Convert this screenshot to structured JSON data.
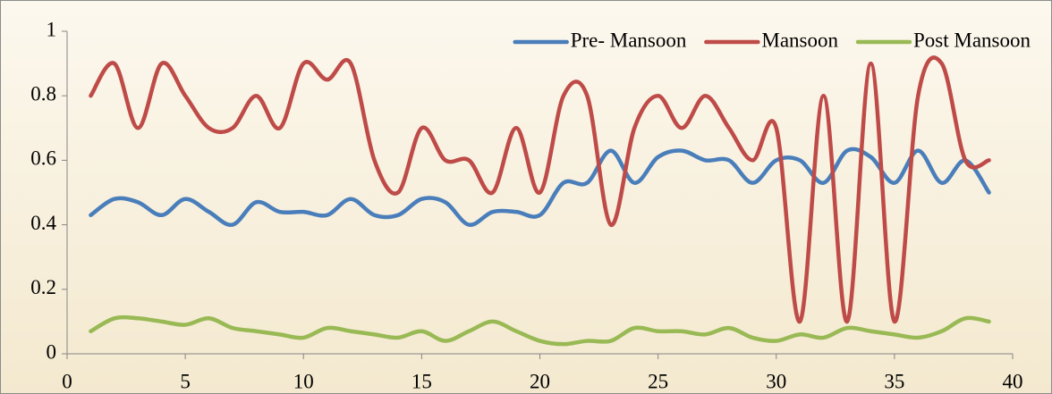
{
  "chart_data": {
    "type": "line",
    "smooth": true,
    "legend": "top-right",
    "grid": false,
    "x": [
      1,
      2,
      3,
      4,
      5,
      6,
      7,
      8,
      9,
      10,
      11,
      12,
      13,
      14,
      15,
      16,
      17,
      18,
      19,
      20,
      21,
      22,
      23,
      24,
      25,
      26,
      27,
      28,
      29,
      30,
      31,
      32,
      33,
      34,
      35,
      36,
      37,
      38,
      39
    ],
    "series": [
      {
        "name": "Pre- Mansoon",
        "color": "#4a7ebb",
        "values": [
          0.43,
          0.48,
          0.47,
          0.43,
          0.48,
          0.44,
          0.4,
          0.47,
          0.44,
          0.44,
          0.43,
          0.48,
          0.43,
          0.43,
          0.48,
          0.47,
          0.4,
          0.44,
          0.44,
          0.43,
          0.53,
          0.53,
          0.63,
          0.53,
          0.61,
          0.63,
          0.6,
          0.6,
          0.53,
          0.6,
          0.6,
          0.53,
          0.63,
          0.61,
          0.53,
          0.63,
          0.53,
          0.6,
          0.5
        ]
      },
      {
        "name": "Mansoon",
        "color": "#be4b48",
        "values": [
          0.8,
          0.9,
          0.7,
          0.9,
          0.8,
          0.7,
          0.7,
          0.8,
          0.7,
          0.9,
          0.85,
          0.9,
          0.6,
          0.5,
          0.7,
          0.6,
          0.6,
          0.5,
          0.7,
          0.5,
          0.8,
          0.8,
          0.4,
          0.7,
          0.8,
          0.7,
          0.8,
          0.7,
          0.6,
          0.7,
          0.1,
          0.8,
          0.1,
          0.9,
          0.1,
          0.8,
          0.9,
          0.6,
          0.6
        ]
      },
      {
        "name": "Post Mansoon",
        "color": "#98b954",
        "values": [
          0.07,
          0.11,
          0.11,
          0.1,
          0.09,
          0.11,
          0.08,
          0.07,
          0.06,
          0.05,
          0.08,
          0.07,
          0.06,
          0.05,
          0.07,
          0.04,
          0.07,
          0.1,
          0.07,
          0.04,
          0.03,
          0.04,
          0.04,
          0.08,
          0.07,
          0.07,
          0.06,
          0.08,
          0.05,
          0.04,
          0.06,
          0.05,
          0.08,
          0.07,
          0.06,
          0.05,
          0.07,
          0.11,
          0.1
        ]
      }
    ],
    "xlim": [
      0,
      40
    ],
    "xticks": [
      0,
      5,
      10,
      15,
      20,
      25,
      30,
      35,
      40
    ],
    "ylim": [
      0,
      1
    ],
    "yticks": [
      0,
      0.2,
      0.4,
      0.6,
      0.8,
      1
    ]
  }
}
